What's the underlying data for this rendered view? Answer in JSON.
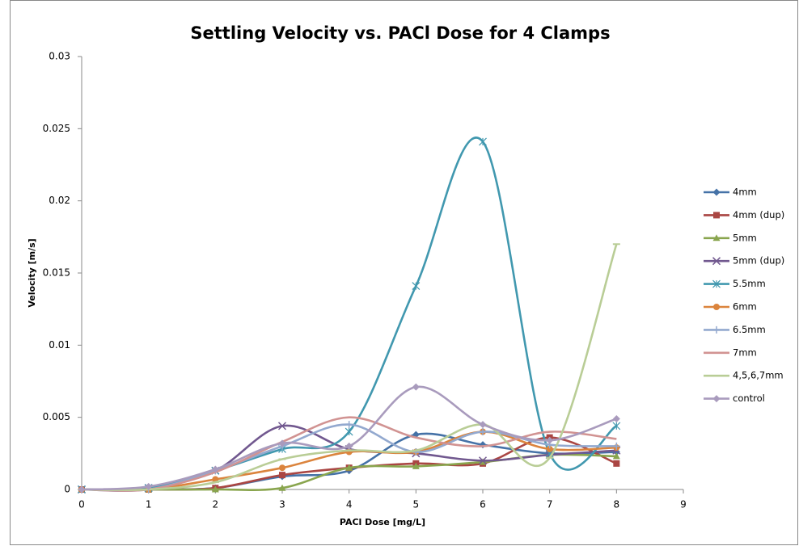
{
  "chart_data": {
    "type": "line",
    "title": "Settling Velocity vs. PACl Dose for 4 Clamps",
    "x_label": "PACl Dose [mg/L]",
    "y_label": "Velocity [m/s]",
    "x": [
      0,
      1,
      2,
      3,
      4,
      5,
      6,
      7,
      8
    ],
    "xlim": [
      0,
      9
    ],
    "xticks": [
      0,
      1,
      2,
      3,
      4,
      5,
      6,
      7,
      8,
      9
    ],
    "ylim": [
      0,
      0.03
    ],
    "yticks": [
      0,
      0.005,
      0.01,
      0.015,
      0.02,
      0.025,
      0.03
    ],
    "grid": false,
    "smooth": true,
    "legend": "right",
    "series": [
      {
        "name": "4mm",
        "color": "#4572A7",
        "marker": "diamond",
        "values": [
          0,
          0,
          0.0001,
          0.0009,
          0.0013,
          0.0038,
          0.0031,
          0.0025,
          0.0026
        ]
      },
      {
        "name": "4mm (dup)",
        "color": "#AA4643",
        "marker": "square",
        "values": [
          0,
          0,
          0.0001,
          0.001,
          0.0015,
          0.0018,
          0.0018,
          0.0036,
          0.0018
        ]
      },
      {
        "name": "5mm",
        "color": "#89A54E",
        "marker": "triangle",
        "values": [
          0,
          0,
          0,
          0.0001,
          0.0015,
          0.0016,
          0.0019,
          0.0024,
          0.0023
        ]
      },
      {
        "name": "5mm (dup)",
        "color": "#71588F",
        "marker": "x",
        "values": [
          0,
          0.0001,
          0.0013,
          0.0044,
          0.0028,
          0.0025,
          0.002,
          0.0024,
          0.0027
        ]
      },
      {
        "name": "5.5mm",
        "color": "#4198AF",
        "marker": "star",
        "values": [
          0,
          0.0001,
          0.0013,
          0.0028,
          0.004,
          0.0141,
          0.0241,
          0.0025,
          0.0044
        ]
      },
      {
        "name": "6mm",
        "color": "#DB843D",
        "marker": "circle",
        "values": [
          0,
          0,
          0.0007,
          0.0015,
          0.0026,
          0.0026,
          0.004,
          0.0028,
          0.0029
        ]
      },
      {
        "name": "6.5mm",
        "color": "#93A9CF",
        "marker": "plus",
        "values": [
          0,
          0,
          0.0013,
          0.003,
          0.0045,
          0.0026,
          0.004,
          0.0031,
          0.003
        ]
      },
      {
        "name": "7mm",
        "color": "#D19392",
        "marker": "none",
        "values": [
          0,
          0,
          0.0012,
          0.0033,
          0.005,
          0.0036,
          0.003,
          0.004,
          0.0035
        ]
      },
      {
        "name": "4,5,6,7mm",
        "color": "#B9CD96",
        "marker": "dash",
        "values": [
          0,
          0,
          0.0005,
          0.0021,
          0.0027,
          0.0027,
          0.0045,
          0.0022,
          0.017
        ]
      },
      {
        "name": "control",
        "color": "#A99BBD",
        "marker": "diamond",
        "values": [
          0,
          0.0002,
          0.0014,
          0.0032,
          0.003,
          0.0071,
          0.0045,
          0.0034,
          0.0049
        ]
      }
    ]
  }
}
